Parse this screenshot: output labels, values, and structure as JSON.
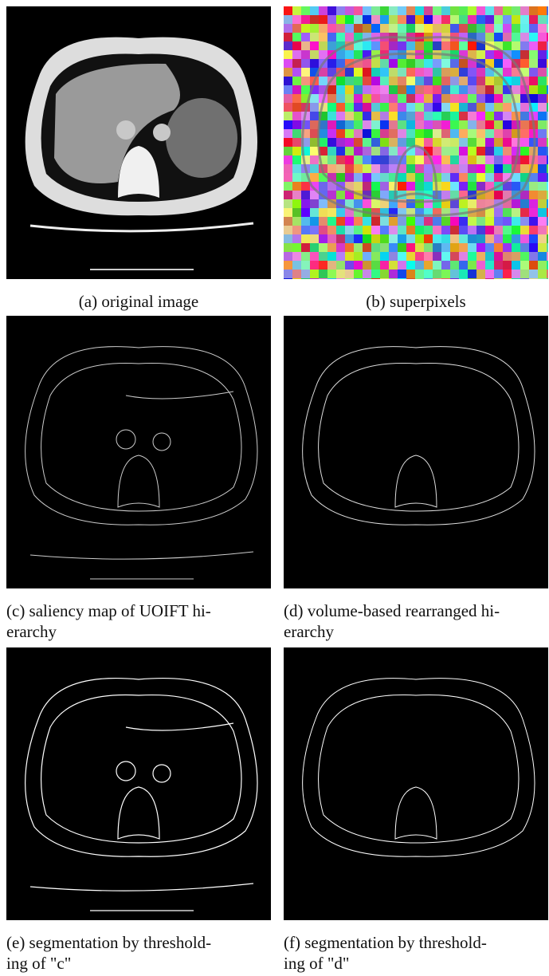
{
  "figure": {
    "panels": [
      {
        "caption": [
          "(a) original image"
        ]
      },
      {
        "caption": [
          "(b) superpixels"
        ]
      },
      {
        "caption": [
          "(c) saliency map of UOIFT hi-",
          "erarchy"
        ]
      },
      {
        "caption": [
          "(d) volume-based rearranged hi-",
          "erarchy"
        ]
      },
      {
        "caption": [
          "(e) segmentation by threshold-",
          "ing of \"c\""
        ]
      },
      {
        "caption": [
          "(f) segmentation by threshold-",
          "ing of \"d\""
        ]
      }
    ]
  }
}
